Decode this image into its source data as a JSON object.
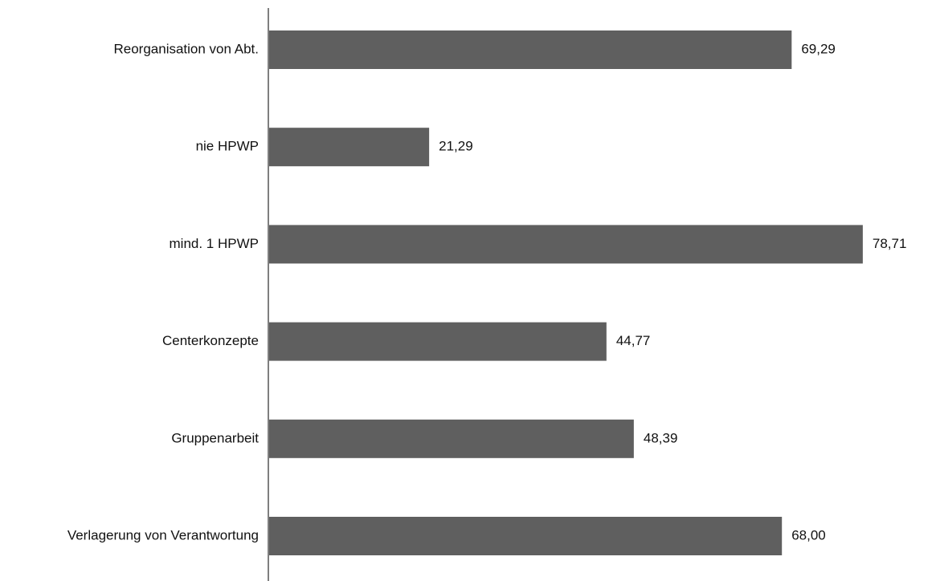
{
  "chart_data": {
    "type": "bar",
    "orientation": "horizontal",
    "categories": [
      "Reorganisation von Abt.",
      "nie HPWP",
      "mind. 1 HPWP",
      "Centerkonzepte",
      "Gruppenarbeit",
      "Verlagerung von Verantwortung"
    ],
    "values": [
      69.29,
      21.29,
      78.71,
      44.77,
      48.39,
      68.0
    ],
    "value_labels": [
      "69,29",
      "21,29",
      "78,71",
      "44,77",
      "48,39",
      "68,00"
    ],
    "title": "",
    "xlabel": "",
    "ylabel": "",
    "xlim": [
      0,
      100
    ],
    "grid": false,
    "legend": "none",
    "bar_color": "#5f5f5f",
    "axis_color": "#7f7f7f"
  }
}
